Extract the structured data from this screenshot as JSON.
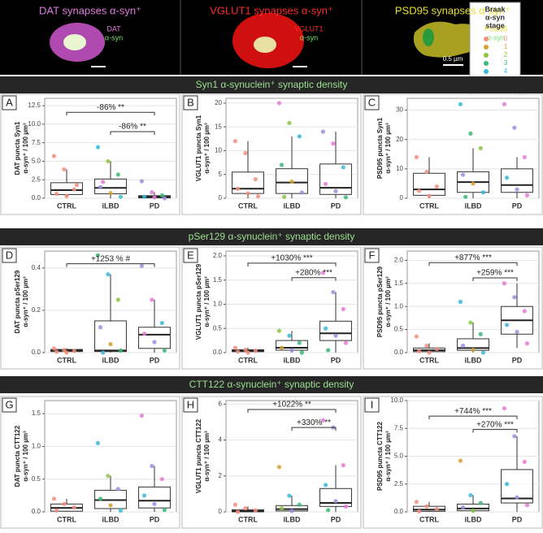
{
  "headers": [
    {
      "text": "DAT synapses α-syn⁺",
      "color": "#e07be0",
      "labels": [
        "DAT",
        "α-syn"
      ]
    },
    {
      "text": "VGLUT1 synapses α-syn⁺",
      "color": "#ff2a2a",
      "labels": [
        "VGLUT1",
        "α-syn"
      ]
    },
    {
      "text": "PSD95 synapses α-syn⁺",
      "color": "#e8e030",
      "labels": [
        "PSD95",
        "α-syn"
      ],
      "scale": "0.5 µm"
    }
  ],
  "legend": {
    "title": [
      "Braak",
      "α-syn",
      "stage"
    ],
    "stages": [
      0,
      1,
      2,
      3,
      4,
      5,
      6
    ],
    "colors": [
      "#f28e7f",
      "#d4a030",
      "#8cc63f",
      "#3cb878",
      "#3cb8d8",
      "#9b8de0",
      "#e67ad6"
    ]
  },
  "sections": [
    "Syn1 α-synuclein⁺ synaptic density",
    "pSer129 α-synuclein⁺ synaptic density",
    "CTT122 α-synuclein⁺ synaptic density"
  ],
  "chart_data": [
    {
      "type": "box",
      "letter": "A",
      "ylabel": [
        "DAT puncta Syn1",
        "α-syn⁺ / 100 µm³"
      ],
      "categories": [
        "CTRL",
        "iLBD",
        "PD"
      ],
      "ylim": [
        0,
        13.5
      ],
      "yticks": [
        {
          "value": 0,
          "label": "0.0"
        },
        {
          "value": 2.5,
          "label": "2.5"
        },
        {
          "value": 5,
          "label": "5.0"
        },
        {
          "value": 7.5,
          "label": "7.5"
        },
        {
          "value": 10,
          "label": "10.0"
        },
        {
          "value": 12.5,
          "label": "12.5"
        }
      ],
      "boxes": [
        {
          "q1": 0.5,
          "median": 1.1,
          "q3": 2.1,
          "low": 0.2,
          "high": 3.9,
          "points": [
            5.7,
            3.9,
            1.2,
            0.6,
            0.3,
            1.8
          ],
          "stages": [
            0,
            0,
            0,
            0,
            0,
            0
          ]
        },
        {
          "q1": 0.6,
          "median": 1.4,
          "q3": 2.6,
          "low": 0,
          "high": 5,
          "points": [
            6.9,
            5,
            3.2,
            1.5,
            0.7,
            0.2,
            2.2
          ],
          "stages": [
            4,
            2,
            3,
            5,
            1,
            4,
            6
          ]
        },
        {
          "q1": 0.05,
          "median": 0.2,
          "q3": 0.35,
          "low": 0,
          "high": 0.8,
          "points": [
            2.3,
            0.8,
            0.4,
            0.2,
            0.1,
            0
          ],
          "stages": [
            5,
            6,
            3,
            4,
            6,
            5
          ]
        }
      ],
      "annotations": [
        {
          "label": "-86% **",
          "from": 0,
          "to": 2,
          "y": 11.6
        },
        {
          "label": "-86% **",
          "from": 1,
          "to": 2,
          "y": 9
        }
      ]
    },
    {
      "type": "box",
      "letter": "B",
      "ylabel": [
        "VGLUT1 puncta Syn1",
        "α-syn⁺ / 100 µm³"
      ],
      "categories": [
        "CTRL",
        "iLBD",
        "PD"
      ],
      "ylim": [
        0,
        21
      ],
      "yticks": [
        0,
        5,
        10,
        15,
        20
      ],
      "boxes": [
        {
          "q1": 1,
          "median": 2,
          "q3": 5.5,
          "low": 0,
          "high": 12,
          "points": [
            12,
            9.5,
            4,
            2,
            1,
            0.4
          ],
          "stages": [
            0,
            0,
            0,
            0,
            0,
            0
          ]
        },
        {
          "q1": 1,
          "median": 3.3,
          "q3": 6.2,
          "low": 0,
          "high": 13,
          "points": [
            20,
            15.8,
            13,
            7,
            3.5,
            1.2,
            0.3
          ],
          "stages": [
            6,
            2,
            4,
            3,
            1,
            5,
            2
          ]
        },
        {
          "q1": 0.8,
          "median": 2.2,
          "q3": 7.2,
          "low": 0,
          "high": 14,
          "points": [
            14,
            11.5,
            6.5,
            3,
            1.5,
            0.2
          ],
          "stages": [
            5,
            6,
            4,
            6,
            5,
            3
          ]
        }
      ],
      "annotations": []
    },
    {
      "type": "box",
      "letter": "C",
      "ylabel": [
        "PSD95 puncta Syn1",
        "α-syn⁺ / 100 µm³"
      ],
      "categories": [
        "CTRL",
        "iLBD",
        "PD"
      ],
      "ylim": [
        0,
        34
      ],
      "yticks": [
        0,
        10,
        20,
        30
      ],
      "boxes": [
        {
          "q1": 1,
          "median": 3,
          "q3": 8.5,
          "low": 0,
          "high": 14,
          "points": [
            14,
            9,
            4,
            2.5,
            0.8
          ],
          "stages": [
            0,
            0,
            0,
            0,
            0
          ]
        },
        {
          "q1": 2,
          "median": 5.5,
          "q3": 9,
          "low": 0,
          "high": 17,
          "points": [
            32,
            22,
            17,
            8,
            5,
            2,
            0.5
          ],
          "stages": [
            4,
            3,
            2,
            5,
            1,
            4,
            3
          ]
        },
        {
          "q1": 2,
          "median": 4.5,
          "q3": 10,
          "low": 0,
          "high": 14,
          "points": [
            32,
            24,
            14,
            7,
            3,
            1
          ],
          "stages": [
            6,
            5,
            6,
            4,
            5,
            6
          ]
        }
      ],
      "annotations": []
    },
    {
      "type": "box",
      "letter": "D",
      "ylabel": [
        "DAT puncta pSer129",
        "α-syn⁺ / 100 µm³"
      ],
      "categories": [
        "CTRL",
        "iLBD",
        "PD"
      ],
      "ylim": [
        0,
        0.48
      ],
      "yticks": [
        {
          "value": 0,
          "label": "0.0"
        },
        {
          "value": 0.2,
          "label": "0.2"
        },
        {
          "value": 0.4,
          "label": "0.4"
        }
      ],
      "boxes": [
        {
          "q1": 0.005,
          "median": 0.01,
          "q3": 0.015,
          "low": 0,
          "high": 0.02,
          "points": [
            0.02,
            0.012,
            0.008,
            0.004,
            0
          ],
          "stages": [
            0,
            0,
            0,
            0,
            0
          ]
        },
        {
          "q1": 0.005,
          "median": 0.01,
          "q3": 0.15,
          "low": 0,
          "high": 0.37,
          "points": [
            0.46,
            0.37,
            0.25,
            0.12,
            0.04,
            0.01,
            0
          ],
          "stages": [
            3,
            4,
            2,
            5,
            1,
            3,
            4
          ]
        },
        {
          "q1": 0.02,
          "median": 0.085,
          "q3": 0.12,
          "low": 0,
          "high": 0.25,
          "points": [
            0.41,
            0.25,
            0.14,
            0.09,
            0.05,
            0.01
          ],
          "stages": [
            5,
            6,
            4,
            6,
            5,
            3
          ]
        }
      ],
      "annotations": [
        {
          "label": "+1253 % #",
          "from": 0,
          "to": 2,
          "y": 0.42
        }
      ]
    },
    {
      "type": "box",
      "letter": "E",
      "ylabel": [
        "VGLUT1 puncta pSer129",
        "α-syn⁺ / 100 µm³"
      ],
      "categories": [
        "CTRL",
        "iLBD",
        "PD"
      ],
      "ylim": [
        0,
        2.1
      ],
      "yticks": [
        {
          "value": 0,
          "label": "0.0"
        },
        {
          "value": 0.5,
          "label": "0.5"
        },
        {
          "value": 1,
          "label": "1.0"
        },
        {
          "value": 1.5,
          "label": "1.5"
        },
        {
          "value": 2,
          "label": "2.0"
        }
      ],
      "boxes": [
        {
          "q1": 0.02,
          "median": 0.04,
          "q3": 0.06,
          "low": 0,
          "high": 0.1,
          "points": [
            0.1,
            0.06,
            0.04,
            0.02,
            0
          ],
          "stages": [
            0,
            0,
            0,
            0,
            0
          ]
        },
        {
          "q1": 0.05,
          "median": 0.1,
          "q3": 0.25,
          "low": 0,
          "high": 0.45,
          "points": [
            0.45,
            0.35,
            0.2,
            0.1,
            0.05,
            0
          ],
          "stages": [
            2,
            4,
            3,
            1,
            5,
            3
          ]
        },
        {
          "q1": 0.25,
          "median": 0.4,
          "q3": 0.65,
          "low": 0,
          "high": 1.25,
          "points": [
            1.65,
            1.25,
            0.9,
            0.5,
            0.35,
            0.2,
            0.05
          ],
          "stages": [
            6,
            5,
            6,
            4,
            5,
            6,
            3
          ]
        }
      ],
      "annotations": [
        {
          "label": "+1030% ***",
          "from": 0,
          "to": 2,
          "y": 1.85
        },
        {
          "label": "+280% ***",
          "from": 1,
          "to": 2,
          "y": 1.55
        }
      ]
    },
    {
      "type": "box",
      "letter": "F",
      "ylabel": [
        "PSD95 puncta pSer129",
        "α-syn⁺ / 100 µm³"
      ],
      "categories": [
        "CTRL",
        "iLBD",
        "PD"
      ],
      "ylim": [
        0,
        2.2
      ],
      "yticks": [
        {
          "value": 0,
          "label": "0.0"
        },
        {
          "value": 0.5,
          "label": "0.5"
        },
        {
          "value": 1,
          "label": "1.0"
        },
        {
          "value": 1.5,
          "label": "1.5"
        },
        {
          "value": 2,
          "label": "2.0"
        }
      ],
      "boxes": [
        {
          "q1": 0.02,
          "median": 0.05,
          "q3": 0.1,
          "low": 0,
          "high": 0.2,
          "points": [
            0.35,
            0.15,
            0.08,
            0.03,
            0
          ],
          "stages": [
            0,
            0,
            0,
            0,
            0
          ]
        },
        {
          "q1": 0.05,
          "median": 0.1,
          "q3": 0.3,
          "low": 0,
          "high": 0.65,
          "points": [
            1.1,
            0.65,
            0.4,
            0.15,
            0.06,
            0
          ],
          "stages": [
            4,
            2,
            3,
            5,
            1,
            4
          ]
        },
        {
          "q1": 0.4,
          "median": 0.7,
          "q3": 1,
          "low": 0.1,
          "high": 1.5,
          "points": [
            1.5,
            1.2,
            0.9,
            0.6,
            0.45,
            0.2
          ],
          "stages": [
            6,
            5,
            6,
            4,
            5,
            6
          ]
        }
      ],
      "annotations": [
        {
          "label": "+877% ***",
          "from": 0,
          "to": 2,
          "y": 1.95
        },
        {
          "label": "+259% ***",
          "from": 1,
          "to": 2,
          "y": 1.62
        }
      ]
    },
    {
      "type": "box",
      "letter": "G",
      "ylabel": [
        "DAT puncta CTT122",
        "α-syn⁺ / 100 µm³"
      ],
      "categories": [
        "CTRL",
        "iLBD",
        "PD"
      ],
      "ylim": [
        0,
        1.7
      ],
      "yticks": [
        {
          "value": 0,
          "label": "0.0"
        },
        {
          "value": 0.5,
          "label": "0.5"
        },
        {
          "value": 1,
          "label": "1.0"
        },
        {
          "value": 1.5,
          "label": "1.5"
        }
      ],
      "boxes": [
        {
          "q1": 0.01,
          "median": 0.06,
          "q3": 0.12,
          "low": 0,
          "high": 0.2,
          "points": [
            0.2,
            0.12,
            0.07,
            0.02
          ],
          "stages": [
            0,
            0,
            0,
            0
          ]
        },
        {
          "q1": 0.05,
          "median": 0.18,
          "q3": 0.33,
          "low": 0,
          "high": 0.55,
          "points": [
            1.05,
            0.55,
            0.35,
            0.2,
            0.1,
            0.02
          ],
          "stages": [
            4,
            2,
            5,
            3,
            1,
            4
          ]
        },
        {
          "q1": 0.06,
          "median": 0.17,
          "q3": 0.38,
          "low": 0,
          "high": 0.7,
          "points": [
            1.47,
            0.7,
            0.5,
            0.25,
            0.12,
            0.03
          ],
          "stages": [
            6,
            5,
            6,
            4,
            5,
            3
          ]
        }
      ],
      "annotations": []
    },
    {
      "type": "box",
      "letter": "H",
      "ylabel": [
        "VGLUT1 puncta CTT122",
        "α-syn⁺ / 100 µm³"
      ],
      "categories": [
        "CTRL",
        "iLBD",
        "PD"
      ],
      "ylim": [
        0,
        6.2
      ],
      "yticks": [
        0,
        2,
        4,
        6
      ],
      "boxes": [
        {
          "q1": 0,
          "median": 0.05,
          "q3": 0.12,
          "low": 0,
          "high": 0.3,
          "points": [
            0.4,
            0.2,
            0.08,
            0
          ],
          "stages": [
            0,
            0,
            0,
            0
          ]
        },
        {
          "q1": 0.05,
          "median": 0.15,
          "q3": 0.35,
          "low": 0,
          "high": 0.9,
          "points": [
            2.5,
            0.9,
            0.4,
            0.2,
            0.05
          ],
          "stages": [
            1,
            4,
            3,
            2,
            5
          ]
        },
        {
          "q1": 0.3,
          "median": 0.5,
          "q3": 1.3,
          "low": 0,
          "high": 2.6,
          "points": [
            5.1,
            4.7,
            2.6,
            1.5,
            0.6,
            0.3,
            0.1
          ],
          "stages": [
            6,
            5,
            6,
            4,
            5,
            6,
            3
          ]
        }
      ],
      "annotations": [
        {
          "label": "+1022% **",
          "from": 0,
          "to": 2,
          "y": 5.7
        },
        {
          "label": "+330% **",
          "from": 1,
          "to": 2,
          "y": 4.7
        }
      ]
    },
    {
      "type": "box",
      "letter": "I",
      "ylabel": [
        "PSD95 puncta CTT122",
        "α-syn⁺ / 100 µm³"
      ],
      "categories": [
        "CTRL",
        "iLBD",
        "PD"
      ],
      "ylim": [
        0,
        10
      ],
      "yticks": [
        {
          "value": 0,
          "label": "0.0"
        },
        {
          "value": 2.5,
          "label": "2.5"
        },
        {
          "value": 5,
          "label": "5.0"
        },
        {
          "value": 7.5,
          "label": "7.5"
        },
        {
          "value": 10,
          "label": "10.0"
        }
      ],
      "boxes": [
        {
          "q1": 0.05,
          "median": 0.2,
          "q3": 0.5,
          "low": 0,
          "high": 0.9,
          "points": [
            0.9,
            0.5,
            0.25,
            0.05
          ],
          "stages": [
            0,
            0,
            0,
            0
          ]
        },
        {
          "q1": 0.1,
          "median": 0.3,
          "q3": 0.7,
          "low": 0,
          "high": 1.5,
          "points": [
            4.6,
            1.5,
            0.8,
            0.4,
            0.1
          ],
          "stages": [
            1,
            4,
            3,
            5,
            2
          ]
        },
        {
          "q1": 0.8,
          "median": 1.2,
          "q3": 3.8,
          "low": 0,
          "high": 6.8,
          "points": [
            9.3,
            6.8,
            4.5,
            2.5,
            1.3,
            0.6
          ],
          "stages": [
            6,
            5,
            6,
            4,
            5,
            6
          ]
        }
      ],
      "annotations": [
        {
          "label": "+744% ***",
          "from": 0,
          "to": 2,
          "y": 8.6
        },
        {
          "label": "+270% ***",
          "from": 1,
          "to": 2,
          "y": 7.4
        }
      ]
    }
  ]
}
